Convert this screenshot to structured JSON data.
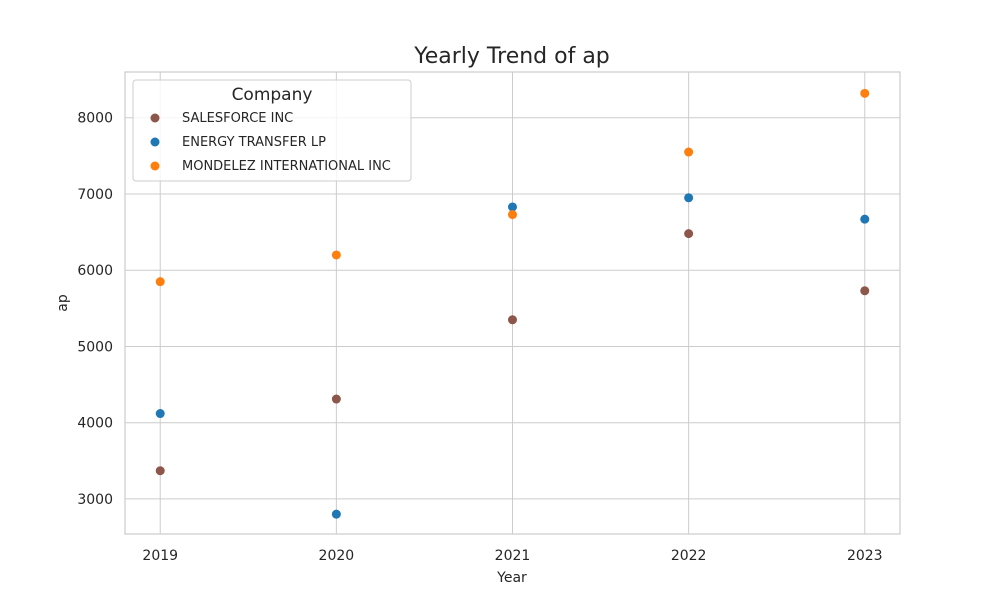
{
  "chart_data": {
    "type": "scatter",
    "title": "Yearly Trend of ap",
    "xlabel": "Year",
    "ylabel": "ap",
    "x": [
      2019,
      2020,
      2021,
      2022,
      2023
    ],
    "x_tick_labels": [
      "2019",
      "2020",
      "2021",
      "2022",
      "2023"
    ],
    "xlim": [
      2018.8,
      2023.2
    ],
    "ylim": [
      2540,
      8600
    ],
    "y_ticks": [
      3000,
      4000,
      5000,
      6000,
      7000,
      8000
    ],
    "y_tick_labels": [
      "3000",
      "4000",
      "5000",
      "6000",
      "7000",
      "8000"
    ],
    "grid": true,
    "legend": {
      "title": "Company",
      "placement": "top-left"
    },
    "series": [
      {
        "name": "SALESFORCE INC",
        "color": "#8c564b",
        "values": [
          3370,
          4310,
          5350,
          6480,
          5730
        ]
      },
      {
        "name": "ENERGY TRANSFER LP",
        "color": "#1f77b4",
        "values": [
          4120,
          2800,
          6830,
          6950,
          6670
        ]
      },
      {
        "name": "MONDELEZ INTERNATIONAL INC",
        "color": "#ff7f0e",
        "values": [
          5850,
          6200,
          6730,
          7550,
          8320
        ]
      }
    ]
  }
}
